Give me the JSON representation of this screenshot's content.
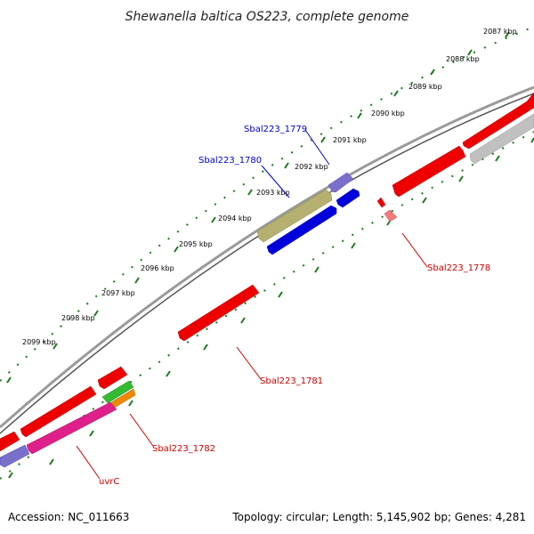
{
  "title": "Shewanella baltica OS223, complete genome",
  "footer": {
    "accession": "Accession: NC_011663",
    "summary": "Topology: circular; Length: 5,145,902 bp; Genes: 4,281"
  },
  "scale_ticks": [
    "2087 kbp",
    "2088 kbp",
    "2089 kbp",
    "2090 kbp",
    "2091 kbp",
    "2092 kbp",
    "2093 kbp",
    "2094 kbp",
    "2095 kbp",
    "2096 kbp",
    "2097 kbp",
    "2098 kbp",
    "2099 kbp"
  ],
  "gene_labels": {
    "g1779": "Sbal223_1779",
    "g1780": "Sbal223_1780",
    "g1778": "Sbal223_1778",
    "g1781": "Sbal223_1781",
    "g1782": "Sbal223_1782",
    "uvrC": "uvrC"
  },
  "colors": {
    "backbone": "#888888",
    "tick_dots": "#1a7a1a",
    "red_feature": "#ee0000",
    "blue_feature": "#0000dd",
    "purple_feature": "#7a70cc",
    "olive_feature": "#b5b070",
    "grey_feature": "#c0c0c0",
    "magenta_feature": "#e0208a",
    "green_feature": "#33bb33",
    "orange_feature": "#ee8800",
    "blue_label": "#0000cc",
    "red_label": "#cc0000"
  }
}
